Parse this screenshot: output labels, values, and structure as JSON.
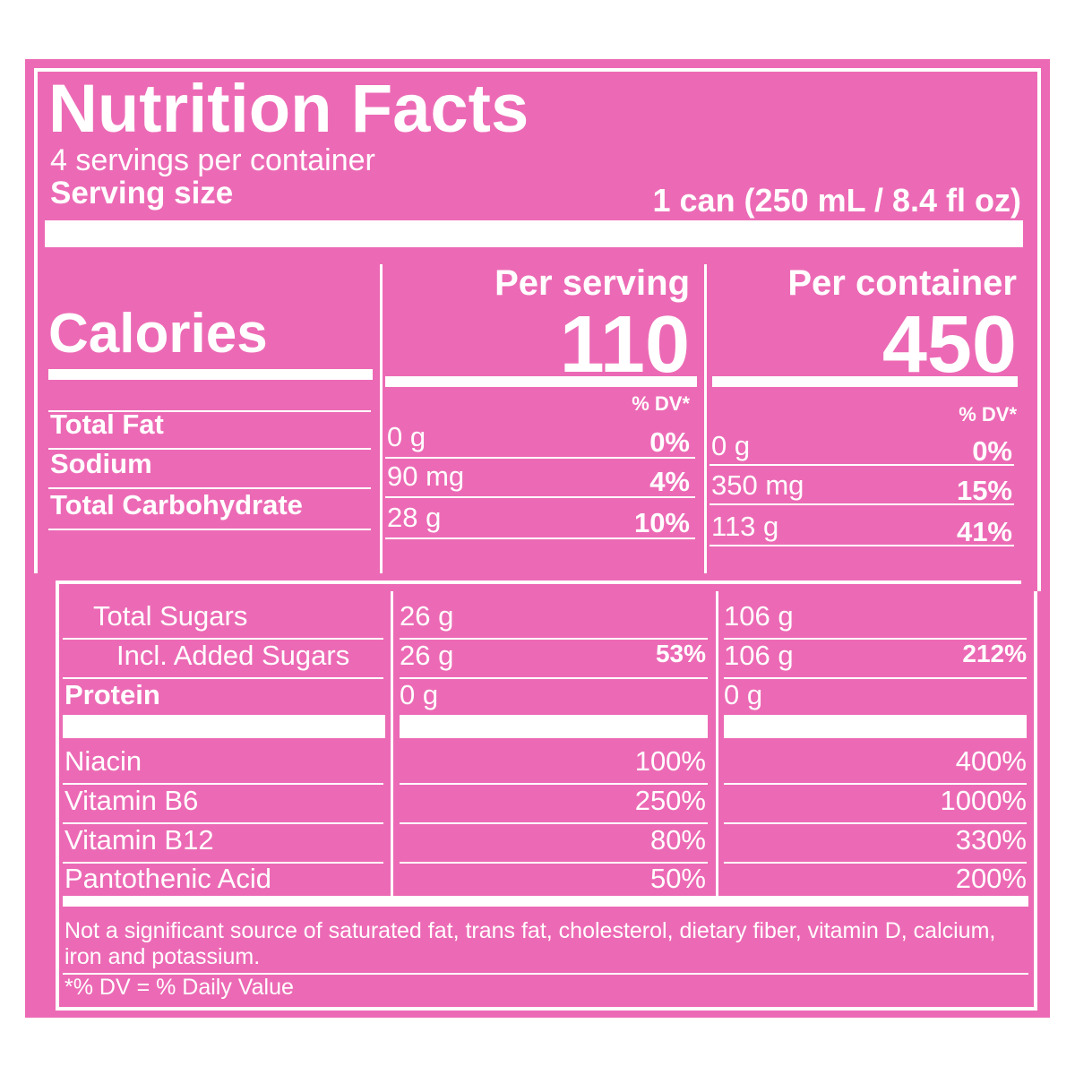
{
  "title": "Nutrition Facts",
  "servings_per_container": "4 servings per container",
  "serving_size": {
    "label": "Serving size",
    "value": "1 can (250 mL / 8.4 fl oz)"
  },
  "columns": [
    "Per serving",
    "Per container"
  ],
  "calories": {
    "label": "Calories",
    "values": [
      "110",
      "450"
    ]
  },
  "dv_header": [
    "% DV*",
    "% DV*"
  ],
  "nutrients": [
    {
      "label": "Total Fat",
      "values": [
        {
          "amount": "0 g",
          "dv": "0%"
        },
        {
          "amount": "0 g",
          "dv": "0%"
        }
      ]
    },
    {
      "label": "Sodium",
      "values": [
        {
          "amount": "90 mg",
          "dv": "4%"
        },
        {
          "amount": "350 mg",
          "dv": "15%"
        }
      ]
    },
    {
      "label": "Total Carbohydrate",
      "values": [
        {
          "amount": "28 g",
          "dv": "10%"
        },
        {
          "amount": "113 g",
          "dv": "41%"
        }
      ]
    }
  ],
  "sugars": [
    {
      "label": "Total Sugars",
      "values": [
        {
          "amount": "26 g"
        },
        {
          "amount": "106 g"
        }
      ]
    },
    {
      "label": "Incl. Added Sugars",
      "values": [
        {
          "amount": "26 g",
          "dv": "53%"
        },
        {
          "amount": "106 g",
          "dv": "212%"
        }
      ]
    },
    {
      "label": "Protein",
      "values": [
        {
          "amount": "0 g"
        },
        {
          "amount": "0 g"
        }
      ]
    }
  ],
  "vitamins": [
    {
      "label": "Niacin",
      "values": [
        "100%",
        "400%"
      ]
    },
    {
      "label": "Vitamin B6",
      "values": [
        "250%",
        "1000%"
      ]
    },
    {
      "label": "Vitamin B12",
      "values": [
        "80%",
        "330%"
      ]
    },
    {
      "label": "Pantothenic Acid",
      "values": [
        "50%",
        "200%"
      ]
    }
  ],
  "footnote": "Not a significant source of saturated fat, trans fat, cholesterol, dietary fiber, vitamin D, calcium, iron and potassium.",
  "dv_note": "*% DV = % Daily Value"
}
